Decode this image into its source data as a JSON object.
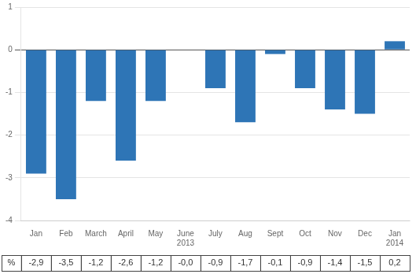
{
  "chart_data": {
    "type": "bar",
    "categories": [
      "Jan",
      "Feb",
      "March",
      "April",
      "May",
      "June\n2013",
      "July",
      "Aug",
      "Sept",
      "Oct",
      "Nov",
      "Dec",
      "Jan\n2014"
    ],
    "values": [
      -2.9,
      -3.5,
      -1.2,
      -2.6,
      -1.2,
      -0.0,
      -0.9,
      -1.7,
      -0.1,
      -0.9,
      -1.4,
      -1.5,
      0.2
    ],
    "value_labels": [
      "-2,9",
      "-3,5",
      "-1,2",
      "-2,6",
      "-1,2",
      "-0,0",
      "-0,9",
      "-1,7",
      "-0,1",
      "-0,9",
      "-1,4",
      "-1,5",
      "0,2"
    ],
    "data_labels": true,
    "ylabel": "%",
    "color": "#2E75B6",
    "ylim": [
      -4,
      1
    ],
    "yticks": [
      -4,
      -3,
      -2,
      -1,
      0,
      1
    ],
    "grid": "y"
  }
}
